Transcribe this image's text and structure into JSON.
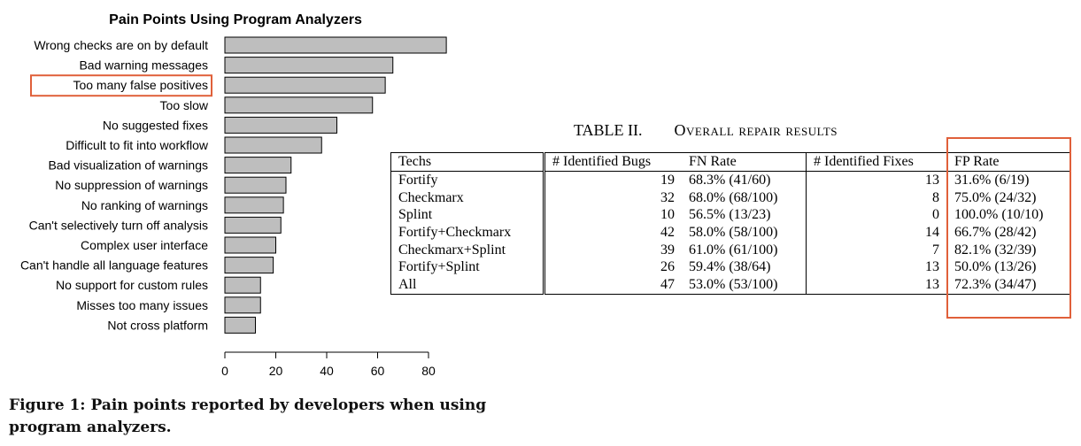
{
  "chart_data": {
    "type": "bar",
    "orientation": "horizontal",
    "title": "Pain Points Using Program Analyzers",
    "categories": [
      "Wrong checks are on by default",
      "Bad warning messages",
      "Too many false positives",
      "Too slow",
      "No suggested fixes",
      "Difficult to fit into workflow",
      "Bad visualization of warnings",
      "No suppression of warnings",
      "No ranking of warnings",
      "Can't selectively turn off analysis",
      "Complex user interface",
      "Can't handle all language features",
      "No support for custom rules",
      "Misses too many issues",
      "Not cross platform"
    ],
    "values": [
      87,
      66,
      63,
      58,
      44,
      38,
      26,
      24,
      23,
      22,
      20,
      19,
      14,
      14,
      12
    ],
    "xlim": [
      0,
      80
    ],
    "xticks": [
      0,
      20,
      40,
      60,
      80
    ],
    "xlabel": "",
    "ylabel": "",
    "grid": false,
    "bar_color": "#bebebe",
    "highlighted_category": "Too many false positives",
    "highlight_color": "#e0603a"
  },
  "figure_caption": "Figure 1: Pain points reported by developers when using program analyzers.",
  "table": {
    "title_number": "TABLE II.",
    "title_text": "Overall repair results",
    "headers": [
      "Techs",
      "# Identified Bugs",
      "FN Rate",
      "# Identified Fixes",
      "FP Rate"
    ],
    "rows": [
      [
        "Fortify",
        "19",
        "68.3% (41/60)",
        "13",
        "31.6% (6/19)"
      ],
      [
        "Checkmarx",
        "32",
        "68.0% (68/100)",
        "8",
        "75.0% (24/32)"
      ],
      [
        "Splint",
        "10",
        "56.5% (13/23)",
        "0",
        "100.0% (10/10)"
      ],
      [
        "Fortify+Checkmarx",
        "42",
        "58.0% (58/100)",
        "14",
        "66.7% (28/42)"
      ],
      [
        "Checkmarx+Splint",
        "39",
        "61.0% (61/100)",
        "7",
        "82.1% (32/39)"
      ],
      [
        "Fortify+Splint",
        "26",
        "59.4% (38/64)",
        "13",
        "50.0% (13/26)"
      ],
      [
        "All",
        "47",
        "53.0% (53/100)",
        "13",
        "72.3% (34/47)"
      ]
    ],
    "highlighted_column": "FP Rate",
    "highlight_color": "#e0603a"
  }
}
